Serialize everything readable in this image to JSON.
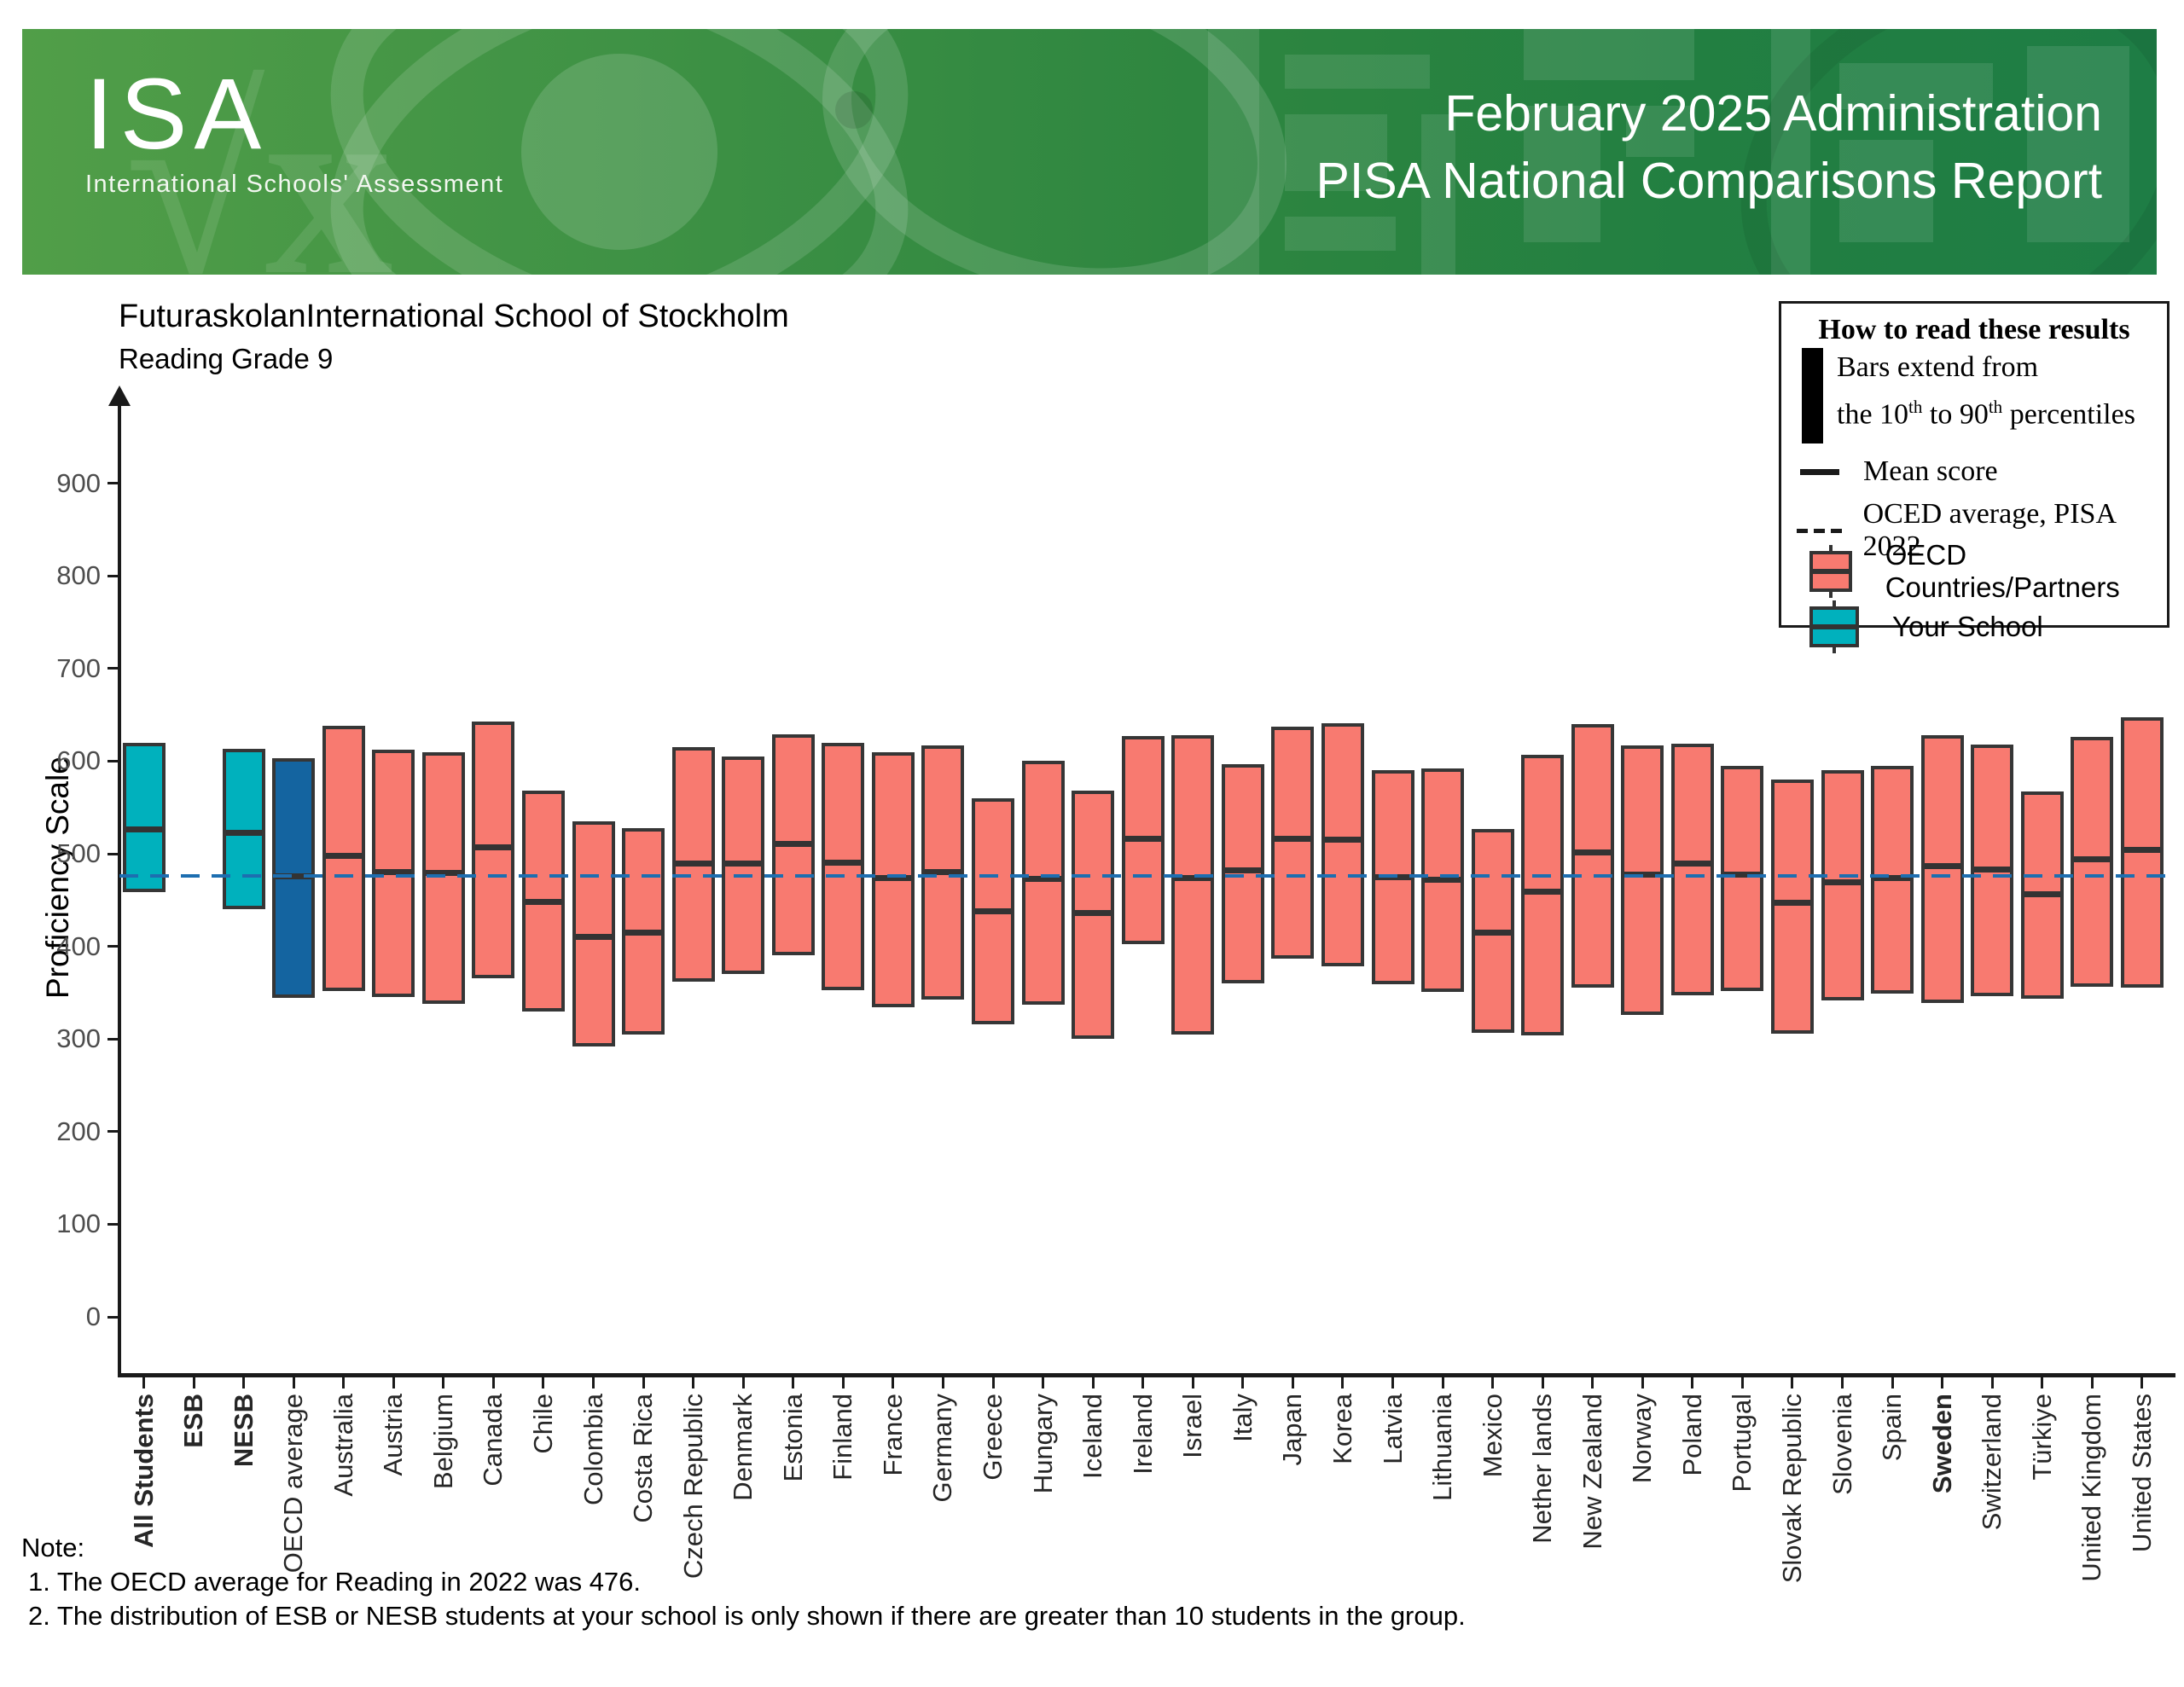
{
  "banner": {
    "logo": "ISA",
    "logo_subtitle": "International Schools' Assessment",
    "title_line1": "February 2025 Administration",
    "title_line2": "PISA National Comparisons Report"
  },
  "header": {
    "school": "FuturaskolanInternational School of Stockholm",
    "subject": "Reading Grade 9"
  },
  "legend": {
    "title": "How to read these results",
    "bars_line1": "Bars extend from",
    "bars_seg1": "the 10",
    "bars_sup1": "th",
    "bars_seg2": " to 90",
    "bars_sup2": "th",
    "bars_seg3": " percentiles",
    "mean_label": "Mean score",
    "oecd_avg_label": "OCED average, PISA 2022",
    "oecd_box_label": "OECD Countries/Partners",
    "school_box_label": "Your School"
  },
  "notes": {
    "label": "Note:",
    "item1": "1. The OECD average for Reading in 2022 was 476.",
    "item2": "2. The distribution of ESB or NESB students at your school is only shown if there are greater than 10 students in the group."
  },
  "chart_data": {
    "type": "bar",
    "subtype": "percentile-range-bars (10th to 90th) with mean line",
    "title": "FuturaskolanInternational School of Stockholm — Reading Grade 9",
    "ylabel": "Proficiency Scale",
    "ylim": [
      0,
      985
    ],
    "yticks": [
      0,
      100,
      200,
      300,
      400,
      500,
      600,
      700,
      800,
      900
    ],
    "grid": false,
    "legend_position": "top-right",
    "reference_line": {
      "label": "OECD average, PISA 2022",
      "value": 476,
      "style": "dashed",
      "color": "#1d6eb0"
    },
    "colors": {
      "your_school": "#00b1bd",
      "oecd_average": "#1464a0",
      "country": "#f87a70",
      "bar_border": "#363636",
      "mean_line": "#333333"
    },
    "categories": [
      {
        "label": "All Students",
        "group": "your_school",
        "bold": true,
        "p10": 459,
        "p90": 620,
        "mean": 526
      },
      {
        "label": "ESB",
        "group": "your_school",
        "bold": true,
        "p10": null,
        "p90": null,
        "mean": null
      },
      {
        "label": "NESB",
        "group": "your_school",
        "bold": true,
        "p10": 440,
        "p90": 613,
        "mean": 523
      },
      {
        "label": "OECD average",
        "group": "oecd_average",
        "bold": false,
        "p10": 344,
        "p90": 603,
        "mean": 476
      },
      {
        "label": "Australia",
        "group": "country",
        "bold": false,
        "p10": 352,
        "p90": 638,
        "mean": 498
      },
      {
        "label": "Austria",
        "group": "country",
        "bold": false,
        "p10": 345,
        "p90": 612,
        "mean": 480
      },
      {
        "label": "Belgium",
        "group": "country",
        "bold": false,
        "p10": 338,
        "p90": 610,
        "mean": 479
      },
      {
        "label": "Canada",
        "group": "country",
        "bold": false,
        "p10": 366,
        "p90": 643,
        "mean": 507
      },
      {
        "label": "Chile",
        "group": "country",
        "bold": false,
        "p10": 330,
        "p90": 568,
        "mean": 448
      },
      {
        "label": "Colombia",
        "group": "country",
        "bold": false,
        "p10": 292,
        "p90": 535,
        "mean": 410
      },
      {
        "label": "Costa Rica",
        "group": "country",
        "bold": false,
        "p10": 305,
        "p90": 528,
        "mean": 415
      },
      {
        "label": "Czech Republic",
        "group": "country",
        "bold": false,
        "p10": 362,
        "p90": 615,
        "mean": 489
      },
      {
        "label": "Denmark",
        "group": "country",
        "bold": false,
        "p10": 370,
        "p90": 605,
        "mean": 489
      },
      {
        "label": "Estonia",
        "group": "country",
        "bold": false,
        "p10": 390,
        "p90": 629,
        "mean": 511
      },
      {
        "label": "Finland",
        "group": "country",
        "bold": false,
        "p10": 353,
        "p90": 620,
        "mean": 490
      },
      {
        "label": "France",
        "group": "country",
        "bold": false,
        "p10": 334,
        "p90": 610,
        "mean": 474
      },
      {
        "label": "Germany",
        "group": "country",
        "bold": false,
        "p10": 343,
        "p90": 617,
        "mean": 480
      },
      {
        "label": "Greece",
        "group": "country",
        "bold": false,
        "p10": 316,
        "p90": 560,
        "mean": 438
      },
      {
        "label": "Hungary",
        "group": "country",
        "bold": false,
        "p10": 337,
        "p90": 600,
        "mean": 473
      },
      {
        "label": "Iceland",
        "group": "country",
        "bold": false,
        "p10": 300,
        "p90": 568,
        "mean": 436
      },
      {
        "label": "Ireland",
        "group": "country",
        "bold": false,
        "p10": 402,
        "p90": 627,
        "mean": 516
      },
      {
        "label": "Israel",
        "group": "country",
        "bold": false,
        "p10": 305,
        "p90": 628,
        "mean": 474
      },
      {
        "label": "Italy",
        "group": "country",
        "bold": false,
        "p10": 360,
        "p90": 597,
        "mean": 482
      },
      {
        "label": "Japan",
        "group": "country",
        "bold": false,
        "p10": 387,
        "p90": 637,
        "mean": 516
      },
      {
        "label": "Korea",
        "group": "country",
        "bold": false,
        "p10": 378,
        "p90": 641,
        "mean": 515
      },
      {
        "label": "Latvia",
        "group": "country",
        "bold": false,
        "p10": 359,
        "p90": 590,
        "mean": 475
      },
      {
        "label": "Lithuania",
        "group": "country",
        "bold": false,
        "p10": 351,
        "p90": 592,
        "mean": 472
      },
      {
        "label": "Mexico",
        "group": "country",
        "bold": false,
        "p10": 307,
        "p90": 527,
        "mean": 415
      },
      {
        "label": "Nether lands",
        "group": "country",
        "bold": false,
        "p10": 304,
        "p90": 607,
        "mean": 459
      },
      {
        "label": "New Zealand",
        "group": "country",
        "bold": false,
        "p10": 355,
        "p90": 640,
        "mean": 501
      },
      {
        "label": "Norway",
        "group": "country",
        "bold": false,
        "p10": 326,
        "p90": 617,
        "mean": 477
      },
      {
        "label": "Poland",
        "group": "country",
        "bold": false,
        "p10": 347,
        "p90": 619,
        "mean": 489
      },
      {
        "label": "Portugal",
        "group": "country",
        "bold": false,
        "p10": 352,
        "p90": 595,
        "mean": 477
      },
      {
        "label": "Slovak Republic",
        "group": "country",
        "bold": false,
        "p10": 306,
        "p90": 580,
        "mean": 447
      },
      {
        "label": "Slovenia",
        "group": "country",
        "bold": false,
        "p10": 342,
        "p90": 590,
        "mean": 469
      },
      {
        "label": "Spain",
        "group": "country",
        "bold": false,
        "p10": 349,
        "p90": 595,
        "mean": 474
      },
      {
        "label": "Sweden",
        "group": "country",
        "bold": true,
        "p10": 339,
        "p90": 628,
        "mean": 487
      },
      {
        "label": "Switzerland",
        "group": "country",
        "bold": false,
        "p10": 346,
        "p90": 618,
        "mean": 483
      },
      {
        "label": "Türkiye",
        "group": "country",
        "bold": false,
        "p10": 343,
        "p90": 567,
        "mean": 456
      },
      {
        "label": "United Kingdom",
        "group": "country",
        "bold": false,
        "p10": 356,
        "p90": 626,
        "mean": 494
      },
      {
        "label": "United States",
        "group": "country",
        "bold": false,
        "p10": 355,
        "p90": 647,
        "mean": 504
      }
    ]
  }
}
